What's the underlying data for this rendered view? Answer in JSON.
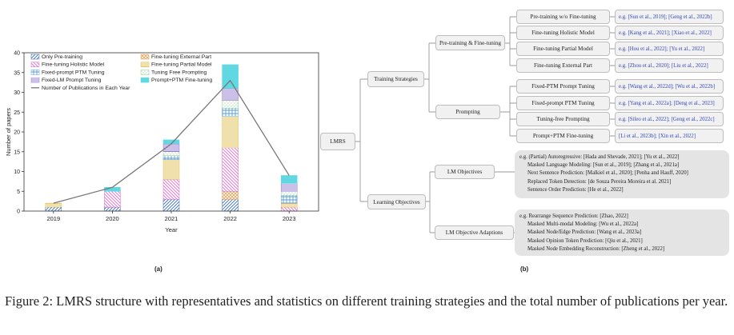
{
  "chart_data": {
    "type": "bar",
    "stacked": true,
    "categories": [
      "2019",
      "2020",
      "2021",
      "2022",
      "2023"
    ],
    "xlabel": "Year",
    "ylabel": "Number of papers",
    "ylim": [
      0,
      40
    ],
    "yticks": [
      0,
      5,
      10,
      15,
      20,
      25,
      30,
      35,
      40
    ],
    "grid": false,
    "legend_position": "top",
    "series": [
      {
        "name": "Only Pre-training",
        "color": "#3d6fb0",
        "pattern": "diag",
        "values": [
          1,
          1,
          3,
          3,
          0
        ]
      },
      {
        "name": "Fine-tuning External Part",
        "color": "#e6a45a",
        "pattern": "cross",
        "values": [
          0,
          0,
          0,
          2,
          0
        ]
      },
      {
        "name": "Fine-tuning Holistic Model",
        "color": "#d86cc8",
        "pattern": "anti",
        "values": [
          0,
          4,
          5,
          11,
          1
        ]
      },
      {
        "name": "Fine-tuning Partial Model",
        "color": "#e2c25a",
        "pattern": "hlines",
        "values": [
          1,
          0,
          5,
          8,
          1
        ]
      },
      {
        "name": "Fixed-prompt PTM Tuning",
        "color": "#5a9bd6",
        "pattern": "grid",
        "values": [
          0,
          0,
          1,
          2,
          2
        ]
      },
      {
        "name": "Tuning Free Prompting",
        "color": "#8fd08f",
        "pattern": "dots",
        "values": [
          0,
          0,
          1,
          2,
          1
        ]
      },
      {
        "name": "Fixed-LM Prompt Tuning",
        "color": "#9a7fd0",
        "pattern": "hlines",
        "values": [
          0,
          0,
          2,
          3,
          2
        ]
      },
      {
        "name": "Prompt+PTM Fine-tuning",
        "color": "#5fd8e2",
        "pattern": "solid",
        "values": [
          0,
          1,
          1,
          6,
          2
        ]
      }
    ],
    "line_series": {
      "name": "Number of Publications in Each Year",
      "color": "#777777",
      "values": [
        2,
        6,
        17,
        33,
        9
      ]
    },
    "legend_order": [
      "Only Pre-training",
      "Fine-tuning External Part",
      "Fine-tuning Holistic Model",
      "Fine-tuning Partial Model",
      "Fixed-prompt PTM Tuning",
      "Tuning Free Prompting",
      "Fixed-LM Prompt Tuning",
      "Prompt+PTM Fine-tuning",
      "Number of Publications in Each Year"
    ]
  },
  "panel_labels": {
    "a": "(a)",
    "b": "(b)"
  },
  "tree": {
    "root": "LMRS",
    "branches": [
      {
        "label": "Training Strategies",
        "groups": [
          {
            "label": "Pre-training & Fine-tuning",
            "leaves": [
              {
                "label": "Pre-training w/o Fine-tuning",
                "refs": "e.g. [Sun et al., 2019]; [Geng et al., 2022b]"
              },
              {
                "label": "Fine-tuning Holistic Model",
                "refs": "e.g. [Kang et al., 2021]; [Xiao et al., 2022]"
              },
              {
                "label": "Fine-tuning Partial Model",
                "refs": "e.g. [Hou et al., 2022]; [Yu et al., 2022]"
              },
              {
                "label": "Fine-tuning External Part",
                "refs": "e.g. [Zhou et al., 2020]; [Liu et al., 2022]"
              }
            ]
          },
          {
            "label": "Prompting",
            "leaves": [
              {
                "label": "Fixed-PTM Prompt Tuning",
                "refs": "e.g. [Wang et al., 2022d]; [Wu et al., 2022b]"
              },
              {
                "label": "Fixed-prompt PTM Tuning",
                "refs": "e.g. [Yang et al., 2022a]; [Deng et al., 2023]"
              },
              {
                "label": "Tuning-free Prompting",
                "refs": "e.g. [Sileo et al., 2022]; [Geng et al., 2022c]"
              },
              {
                "label": "Prompt+PTM Fine-tuning",
                "refs": "[Li et al., 2023b]; [Xin et al., 2022]"
              }
            ]
          }
        ]
      },
      {
        "label": "Learning Objectives",
        "groups": [
          {
            "label": "LM Objectives",
            "items": [
              "e.g. (Partial) Autoregressive: [Hada and Shevade, 2021]; [Yu et al., 2022]",
              "Masked Language Modeling: [Sun et al., 2019]; [Zhang et al., 2021a]",
              "Next Sentence Prediction: [Malkiel et al., 2020]; [Penha and Hauff, 2020]",
              "Replaced Token Detection: [de Souza Pereira Moreira et al. 2021]",
              "Sentence Order Prediction: [He et al., 2022]"
            ]
          },
          {
            "label": "LM Objective Adaptions",
            "items": [
              "e.g. Rearrange Sequence Prediction: [Zhao, 2022]",
              "Masked Multi-modal Modeling: [Wu et al., 2022a]",
              "Masked Node/Edge Prediction: [Wang et al., 2023a]",
              "Masked Opinion Token Prediction: [Qiu et al., 2021]",
              "Masked Node Embedding Reconstruction: [Zheng et al., 2022]"
            ]
          }
        ]
      }
    ]
  },
  "caption": "Figure 2: LMRS structure with representatives and statistics on different training strategies and the total number of publications per year."
}
